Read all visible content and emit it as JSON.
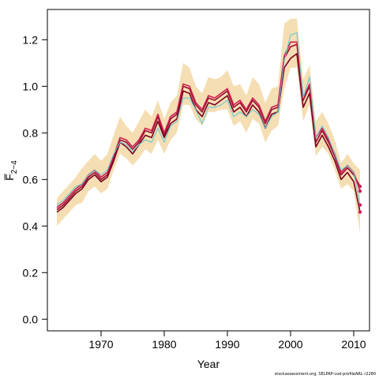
{
  "chart_data": {
    "type": "line",
    "xlabel": "Year",
    "ylabel": "F̅",
    "ylabel_subscript": "2−4",
    "xlim": [
      1961.5,
      2012.5
    ],
    "ylim": [
      -0.05,
      1.33
    ],
    "xticks": [
      1970,
      1980,
      1990,
      2000,
      2010
    ],
    "yticks": [
      0.0,
      0.2,
      0.4,
      0.6,
      0.8,
      1.0,
      1.2
    ],
    "years": [
      1963,
      1964,
      1965,
      1966,
      1967,
      1968,
      1969,
      1970,
      1971,
      1972,
      1973,
      1974,
      1975,
      1976,
      1977,
      1978,
      1979,
      1980,
      1981,
      1982,
      1983,
      1984,
      1985,
      1986,
      1987,
      1988,
      1989,
      1990,
      1991,
      1992,
      1993,
      1994,
      1995,
      1996,
      1997,
      1998,
      1999,
      2000,
      2001,
      2002,
      2003,
      2004,
      2005,
      2006,
      2007,
      2008,
      2009,
      2010,
      2011
    ],
    "band": {
      "name": "confidence band",
      "color": "#f5deb3",
      "upper": [
        0.52,
        0.55,
        0.58,
        0.61,
        0.65,
        0.68,
        0.71,
        0.68,
        0.71,
        0.79,
        0.87,
        0.83,
        0.8,
        0.85,
        0.9,
        0.87,
        0.94,
        0.86,
        0.93,
        0.96,
        1.1,
        1.08,
        1.0,
        0.97,
        1.04,
        1.03,
        1.04,
        1.07,
        1.0,
        1.01,
        0.96,
        1.04,
        1.01,
        0.93,
        0.99,
        1.0,
        1.27,
        1.29,
        1.29,
        1.03,
        1.09,
        0.85,
        0.89,
        0.84,
        0.77,
        0.67,
        0.71,
        0.67,
        0.64
      ],
      "lower": [
        0.4,
        0.43,
        0.46,
        0.49,
        0.5,
        0.55,
        0.57,
        0.54,
        0.56,
        0.64,
        0.71,
        0.69,
        0.66,
        0.69,
        0.73,
        0.71,
        0.77,
        0.71,
        0.77,
        0.8,
        0.92,
        0.92,
        0.86,
        0.83,
        0.89,
        0.89,
        0.9,
        0.9,
        0.83,
        0.85,
        0.8,
        0.86,
        0.84,
        0.76,
        0.81,
        0.83,
        0.99,
        1.08,
        1.08,
        0.85,
        0.92,
        0.7,
        0.74,
        0.71,
        0.64,
        0.56,
        0.58,
        0.55,
        0.37
      ]
    },
    "series": [
      {
        "color": "#9b0a32",
        "values": [
          0.47,
          0.49,
          0.52,
          0.55,
          0.57,
          0.61,
          0.63,
          0.6,
          0.62,
          0.69,
          0.77,
          0.76,
          0.73,
          0.76,
          0.81,
          0.8,
          0.87,
          0.79,
          0.86,
          0.88,
          1.0,
          0.99,
          0.92,
          0.89,
          0.95,
          0.94,
          0.96,
          0.98,
          0.91,
          0.93,
          0.89,
          0.94,
          0.91,
          0.84,
          0.9,
          0.91,
          1.12,
          1.17,
          1.18,
          0.94,
          1.0,
          0.76,
          0.81,
          0.76,
          0.7,
          0.62,
          0.65,
          0.62,
          0.57
        ]
      },
      {
        "color": "#7a0020",
        "values": [
          0.46,
          0.48,
          0.51,
          0.54,
          0.56,
          0.6,
          0.62,
          0.59,
          0.61,
          0.68,
          0.76,
          0.74,
          0.71,
          0.75,
          0.79,
          0.78,
          0.85,
          0.78,
          0.84,
          0.86,
          0.98,
          0.97,
          0.9,
          0.87,
          0.93,
          0.92,
          0.94,
          0.96,
          0.89,
          0.91,
          0.87,
          0.92,
          0.89,
          0.82,
          0.88,
          0.89,
          1.08,
          1.12,
          1.14,
          0.91,
          0.97,
          0.74,
          0.79,
          0.74,
          0.68,
          0.6,
          0.63,
          0.59,
          0.46
        ]
      },
      {
        "color": "#cc2050",
        "values": [
          0.48,
          0.5,
          0.53,
          0.56,
          0.58,
          0.62,
          0.64,
          0.61,
          0.63,
          0.7,
          0.78,
          0.77,
          0.74,
          0.77,
          0.82,
          0.81,
          0.88,
          0.8,
          0.87,
          0.89,
          1.01,
          1.0,
          0.93,
          0.9,
          0.96,
          0.95,
          0.97,
          0.99,
          0.92,
          0.94,
          0.9,
          0.95,
          0.92,
          0.85,
          0.91,
          0.92,
          1.13,
          1.19,
          1.19,
          0.95,
          1.01,
          0.78,
          0.82,
          0.77,
          0.71,
          0.63,
          0.66,
          0.63,
          0.55
        ]
      },
      {
        "color": "#5ec8d0",
        "values": [
          0.49,
          0.51,
          0.54,
          0.57,
          0.58,
          0.62,
          0.64,
          0.62,
          0.64,
          0.71,
          0.76,
          0.75,
          0.72,
          0.75,
          0.77,
          0.76,
          0.82,
          0.76,
          0.83,
          0.85,
          0.95,
          0.95,
          0.9,
          0.84,
          0.91,
          0.91,
          0.92,
          0.94,
          0.87,
          0.89,
          0.87,
          0.9,
          0.88,
          0.82,
          0.87,
          0.89,
          1.11,
          1.22,
          1.23,
          0.95,
          1.04,
          0.78,
          0.83,
          0.78,
          0.71,
          0.64,
          0.66,
          0.63,
          0.49
        ]
      }
    ],
    "end_marker": {
      "year": 2011,
      "color": "#cc1f5a"
    }
  },
  "footer": "stockassessment.org, SELPAP-cod-profileARL r2280"
}
